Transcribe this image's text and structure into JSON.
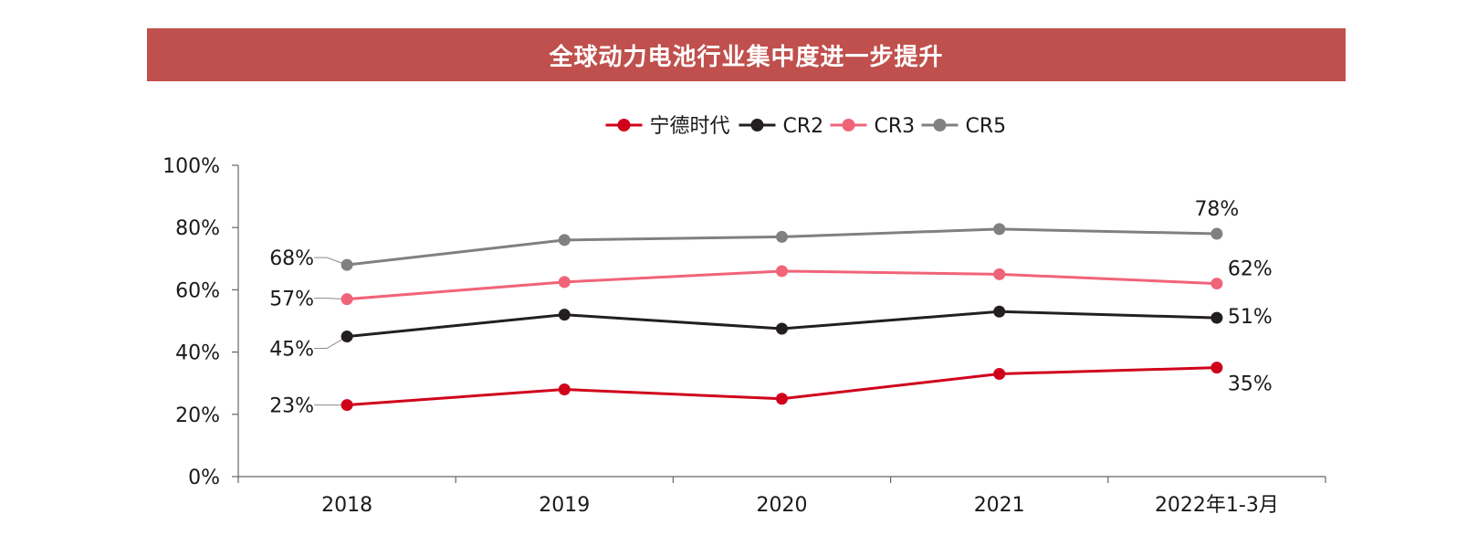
{
  "chart_data": {
    "type": "line",
    "title": "全球动力电池行业集中度进一步提升",
    "categories": [
      "2018",
      "2019",
      "2020",
      "2021",
      "2022年1-3月"
    ],
    "ylim": [
      0,
      100
    ],
    "yticks": [
      "0%",
      "20%",
      "40%",
      "60%",
      "80%",
      "100%"
    ],
    "grid": false,
    "legend_position": "top-center",
    "series": [
      {
        "name": "宁德时代",
        "color": "#d0021b",
        "values": [
          23,
          28,
          25,
          33,
          35
        ],
        "data_labels": [
          "23%",
          "",
          "",
          "",
          "35%"
        ]
      },
      {
        "name": "CR2",
        "color": "#231f20",
        "values": [
          45,
          52,
          47.5,
          53,
          51
        ],
        "data_labels": [
          "45%",
          "",
          "",
          "",
          "51%"
        ]
      },
      {
        "name": "CR3",
        "color": "#f06478",
        "values": [
          57,
          62.5,
          66,
          65,
          62
        ],
        "data_labels": [
          "57%",
          "",
          "",
          "",
          "62%"
        ]
      },
      {
        "name": "CR5",
        "color": "#808080",
        "values": [
          68,
          76,
          77,
          79.5,
          78
        ],
        "data_labels": [
          "68%",
          "",
          "",
          "",
          "78%"
        ]
      }
    ]
  }
}
